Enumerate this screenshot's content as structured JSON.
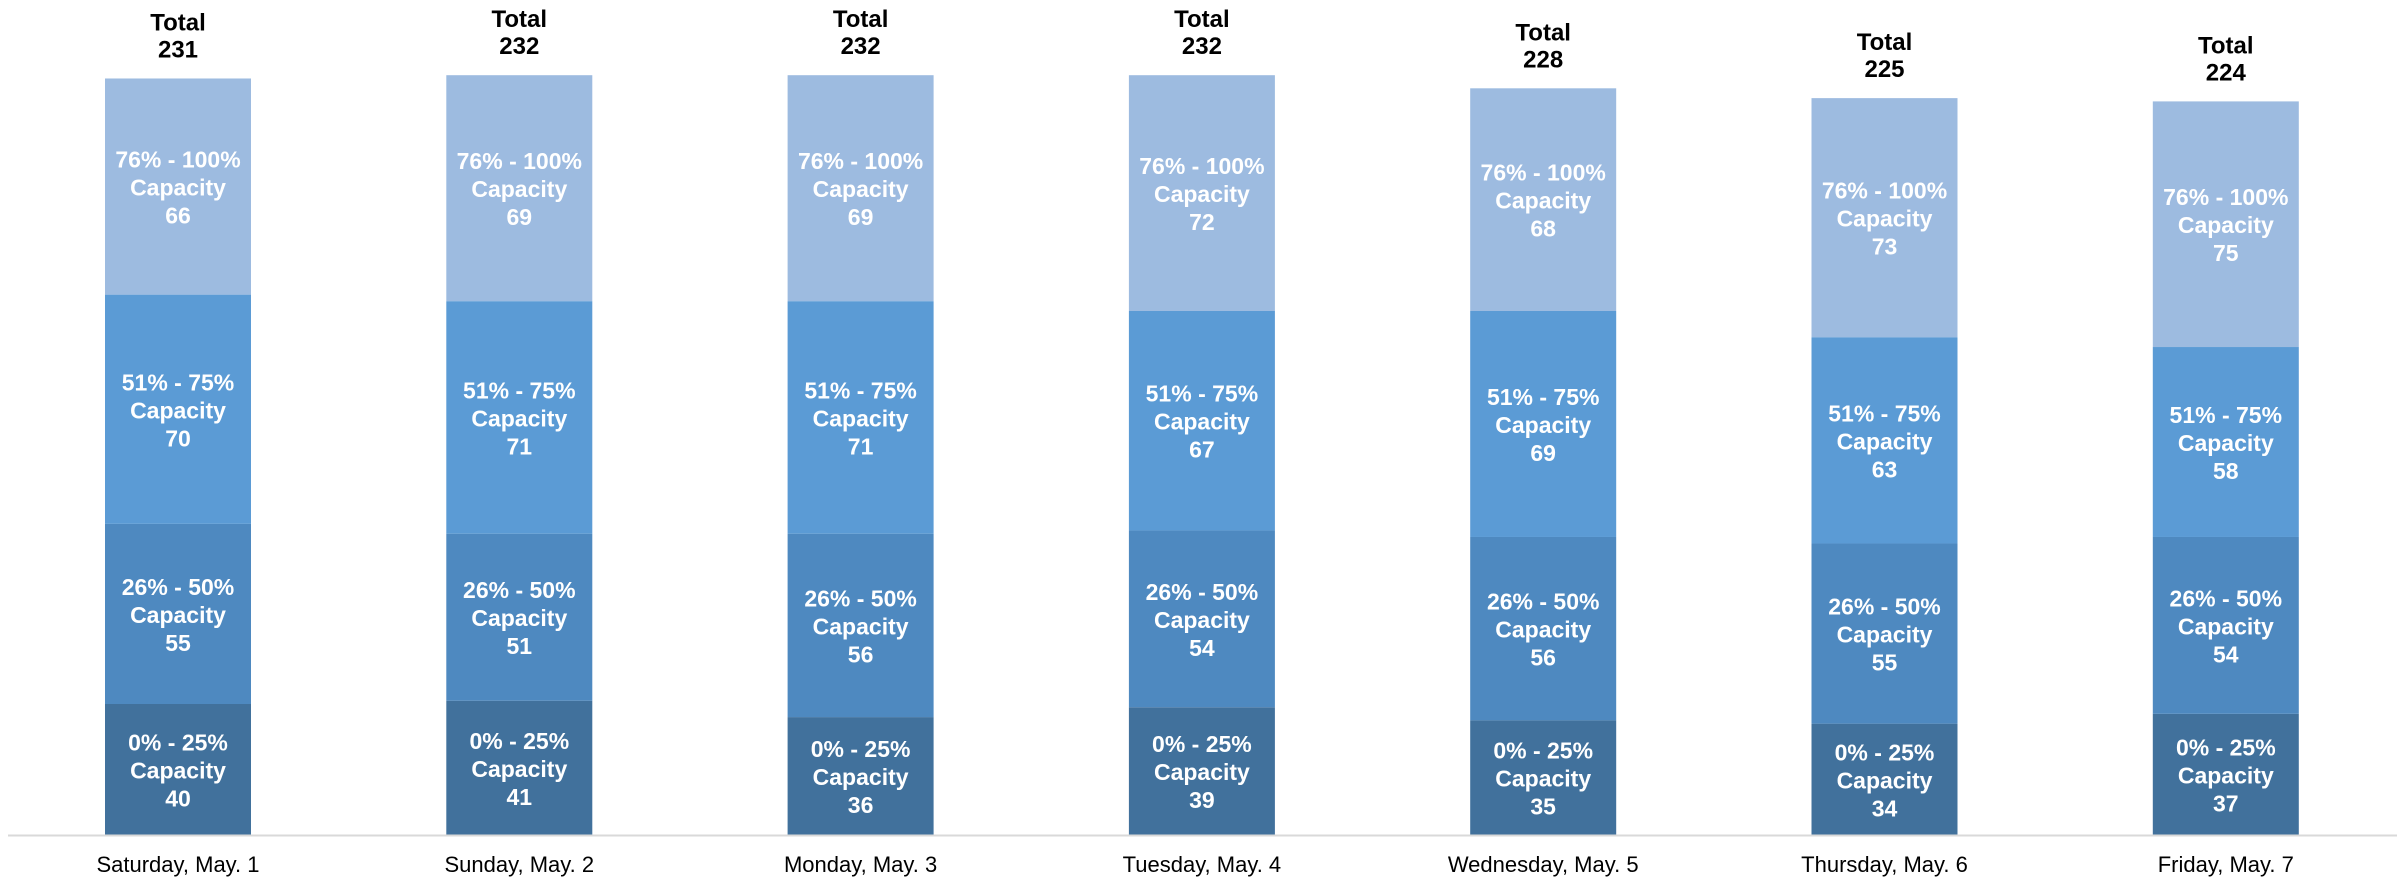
{
  "chart_data": {
    "type": "bar",
    "stacked": true,
    "title": "",
    "xlabel": "",
    "ylabel": "",
    "categories": [
      "Saturday, May. 1",
      "Sunday, May. 2",
      "Monday, May. 3",
      "Tuesday, May. 4",
      "Wednesday, May. 5",
      "Thursday, May. 6",
      "Friday, May. 7"
    ],
    "series": [
      {
        "name": "0% - 25% Capacity",
        "label_lines": [
          "0% - 25%",
          "Capacity"
        ],
        "color": "#41719c",
        "values": [
          40,
          41,
          36,
          39,
          35,
          34,
          37
        ]
      },
      {
        "name": "26% - 50% Capacity",
        "label_lines": [
          "26% - 50%",
          "Capacity"
        ],
        "color": "#4e89c0",
        "values": [
          55,
          51,
          56,
          54,
          56,
          55,
          54
        ]
      },
      {
        "name": "51% - 75% Capacity",
        "label_lines": [
          "51% - 75%",
          "Capacity"
        ],
        "color": "#5b9bd5",
        "values": [
          70,
          71,
          71,
          67,
          69,
          63,
          58
        ]
      },
      {
        "name": "76% - 100% Capacity",
        "label_lines": [
          "76% - 100%",
          "Capacity"
        ],
        "color": "#9dbbe0",
        "values": [
          66,
          69,
          69,
          72,
          68,
          73,
          75
        ]
      }
    ],
    "totals": [
      231,
      232,
      232,
      232,
      228,
      225,
      224
    ],
    "total_label": "Total",
    "ylim": [
      0,
      232
    ],
    "grid": false,
    "legend": "none",
    "axis_color": "#d9d9d9"
  }
}
